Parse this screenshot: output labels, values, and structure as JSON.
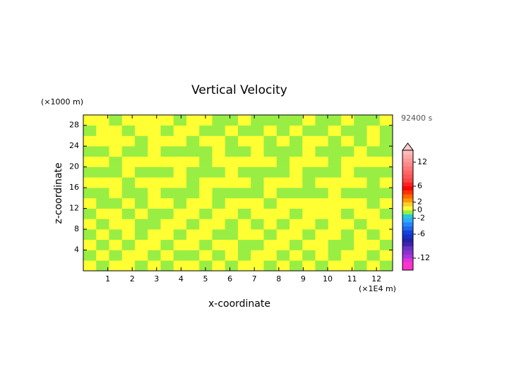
{
  "chart_data": {
    "type": "contour",
    "title": "Vertical Velocity",
    "x_label": "x-coordinate",
    "y_label": "z-coordinate",
    "x_unit": "(×1E4 m)",
    "y_unit": "(×1000 m)",
    "time_label": "92400 s",
    "xlim": [
      0,
      12.66
    ],
    "ylim": [
      0,
      30
    ],
    "xticks": [
      1,
      2,
      3,
      4,
      5,
      6,
      7,
      8,
      9,
      10,
      11,
      12
    ],
    "yticks": [
      4,
      8,
      12,
      16,
      20,
      24,
      28
    ],
    "z": [
      [
        0.5,
        -0.5,
        0.5,
        0.5,
        -0.5,
        0.5,
        -0.5,
        0.5,
        0.5,
        -0.5,
        0.5,
        -0.5,
        0.5,
        0.5,
        -0.5,
        0.5,
        -0.5,
        0.5,
        -0.5,
        0.5,
        0.5,
        -0.5,
        0.5,
        -0.5
      ],
      [
        -0.5,
        0.5,
        -0.5,
        0.5,
        0.5,
        -0.5,
        0.5,
        -0.5,
        -0.5,
        0.5,
        -0.5,
        0.5,
        -0.5,
        0.5,
        0.5,
        -0.5,
        0.5,
        -0.5,
        0.5,
        -0.5,
        0.5,
        0.5,
        -0.5,
        0.5
      ],
      [
        0.5,
        -0.5,
        0.5,
        -0.5,
        0.5,
        0.5,
        -0.5,
        0.5,
        0.5,
        -0.5,
        0.5,
        0.5,
        -0.5,
        -0.5,
        0.5,
        0.5,
        -0.5,
        0.5,
        0.5,
        -0.5,
        -0.5,
        0.5,
        0.5,
        -0.5
      ],
      [
        -0.5,
        0.5,
        -0.5,
        0.5,
        -0.5,
        0.5,
        0.5,
        -0.5,
        0.5,
        0.5,
        -0.5,
        -0.5,
        0.5,
        0.5,
        -0.5,
        0.5,
        0.5,
        -0.5,
        0.5,
        0.5,
        -0.5,
        0.5,
        -0.5,
        0.5
      ],
      [
        0.5,
        -0.5,
        0.5,
        0.5,
        -0.5,
        -0.5,
        0.5,
        0.5,
        -0.5,
        0.5,
        0.5,
        -0.5,
        0.5,
        -0.5,
        0.5,
        -0.5,
        0.5,
        0.5,
        -0.5,
        0.5,
        0.5,
        -0.5,
        0.5,
        0.5
      ],
      [
        -0.5,
        0.5,
        0.5,
        -0.5,
        0.5,
        -0.5,
        -0.5,
        0.5,
        0.5,
        -0.5,
        0.5,
        0.5,
        -0.5,
        0.5,
        0.5,
        0.5,
        -0.5,
        0.5,
        0.5,
        0.5,
        -0.5,
        0.5,
        0.5,
        -0.5
      ],
      [
        0.5,
        -0.5,
        -0.5,
        0.5,
        -0.5,
        0.5,
        0.5,
        -0.5,
        0.5,
        0.5,
        -0.5,
        0.5,
        0.5,
        0.5,
        -0.5,
        0.5,
        0.5,
        0.5,
        0.5,
        0.5,
        0.5,
        0.5,
        -0.5,
        0.5
      ],
      [
        -0.5,
        -0.5,
        0.5,
        -0.5,
        -0.5,
        0.5,
        -0.5,
        -0.5,
        -0.5,
        0.5,
        -0.5,
        -0.5,
        -0.5,
        -0.5,
        0.5,
        -0.5,
        -0.5,
        -0.5,
        -0.5,
        0.5,
        -0.5,
        -0.5,
        -0.5,
        -0.5
      ],
      [
        0.5,
        0.5,
        0.5,
        -0.5,
        0.5,
        0.5,
        0.5,
        0.5,
        -0.5,
        0.5,
        0.5,
        0.5,
        0.5,
        -0.5,
        0.5,
        0.5,
        0.5,
        -0.5,
        0.5,
        0.5,
        0.5,
        0.5,
        -0.5,
        0.5
      ],
      [
        -0.5,
        -0.5,
        -0.5,
        0.5,
        -0.5,
        -0.5,
        -0.5,
        0.5,
        -0.5,
        -0.5,
        -0.5,
        0.5,
        -0.5,
        -0.5,
        -0.5,
        -0.5,
        0.5,
        -0.5,
        -0.5,
        -0.5,
        0.5,
        -0.5,
        -0.5,
        -0.5
      ],
      [
        0.5,
        0.5,
        -0.5,
        0.5,
        0.5,
        0.5,
        0.5,
        0.5,
        0.5,
        -0.5,
        0.5,
        0.5,
        0.5,
        0.5,
        0.5,
        -0.5,
        0.5,
        0.5,
        0.5,
        -0.5,
        0.5,
        0.5,
        0.5,
        0.5
      ],
      [
        -0.5,
        -0.5,
        0.5,
        -0.5,
        -0.5,
        0.5,
        -0.5,
        -0.5,
        -0.5,
        -0.5,
        0.5,
        -0.5,
        -0.5,
        0.5,
        -0.5,
        -0.5,
        -0.5,
        0.5,
        -0.5,
        -0.5,
        -0.5,
        0.5,
        -0.5,
        -0.5
      ],
      [
        0.5,
        0.5,
        0.5,
        0.5,
        -0.5,
        0.5,
        0.5,
        0.5,
        -0.5,
        0.5,
        0.5,
        -0.5,
        0.5,
        0.5,
        -0.5,
        0.5,
        -0.5,
        0.5,
        0.5,
        -0.5,
        0.5,
        -0.5,
        0.5,
        -0.5
      ],
      [
        -0.5,
        0.5,
        0.5,
        -0.5,
        0.5,
        0.5,
        -0.5,
        0.5,
        0.5,
        -0.5,
        -0.5,
        0.5,
        -0.5,
        -0.5,
        0.5,
        -0.5,
        0.5,
        -0.5,
        -0.5,
        0.5,
        -0.5,
        -0.5,
        0.5,
        -0.5
      ],
      [
        0.5,
        0.5,
        -0.5,
        0.5,
        0.5,
        0.5,
        0.5,
        -0.5,
        0.5,
        0.5,
        -0.5,
        -0.5,
        0.5,
        -0.5,
        -0.5,
        -0.5,
        -0.5,
        0.5,
        -0.5,
        -0.5,
        0.5,
        -0.5,
        -0.5,
        0.5
      ]
    ],
    "colorbar": {
      "lim": [
        -15,
        15
      ],
      "levels": [
        -15,
        -14,
        -13,
        -12,
        -11,
        -10,
        -9,
        -8,
        -7,
        -6,
        -5,
        -4,
        -3,
        -2,
        -1,
        0,
        1,
        2,
        3,
        4,
        5,
        6,
        7,
        8,
        9,
        10,
        11,
        12,
        13,
        14,
        15
      ],
      "colors": [
        "#ff33cc",
        "#ff33cc",
        "#dd33dd",
        "#aa33dd",
        "#8833cc",
        "#6633cc",
        "#4422aa",
        "#2222aa",
        "#1133cc",
        "#1144dd",
        "#2266ee",
        "#2288ff",
        "#33aaff",
        "#22ccdd",
        "#99ee44",
        "#ffff33",
        "#ffcc33",
        "#ff9900",
        "#ff6600",
        "#ff3300",
        "#ff0000",
        "#ff2222",
        "#ff4444",
        "#ff5555",
        "#ff6666",
        "#ff7777",
        "#ff8888",
        "#ff9999",
        "#ffaaaa",
        "#ffbbbb"
      ],
      "ticks": [
        -12,
        -6,
        -2,
        0,
        2,
        6,
        12
      ]
    }
  }
}
